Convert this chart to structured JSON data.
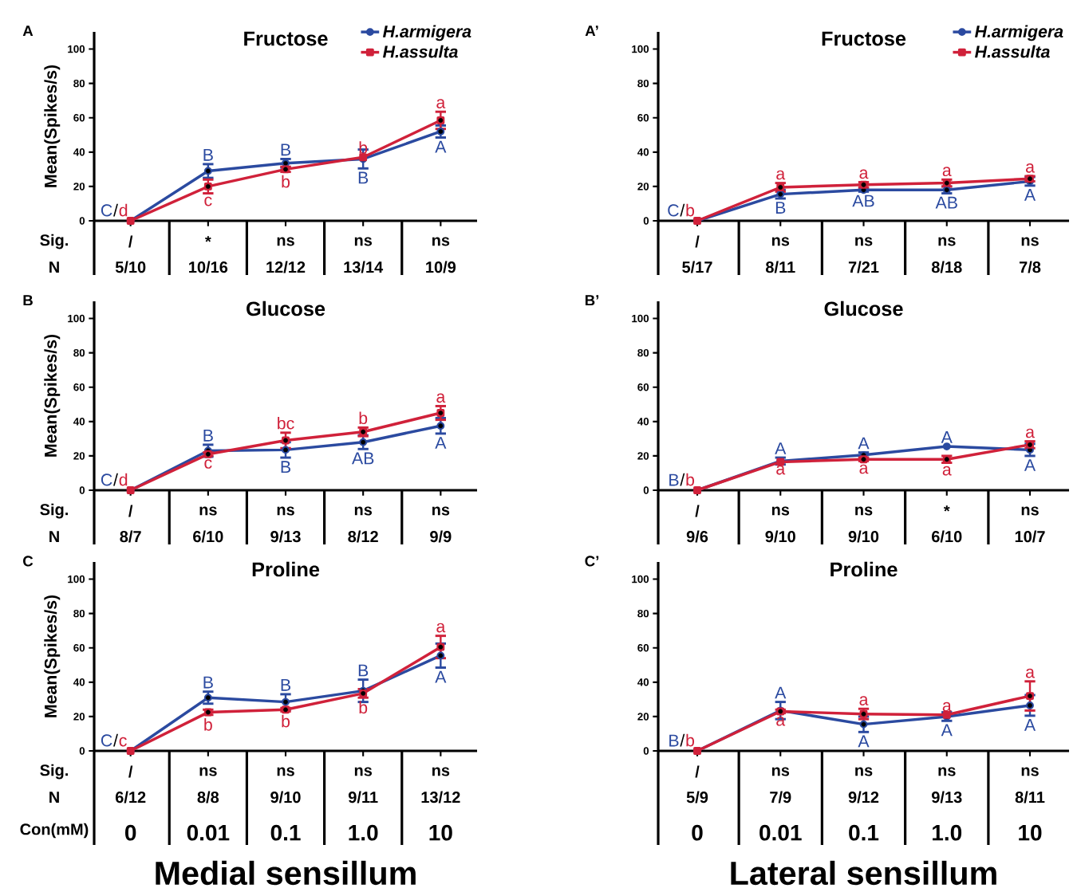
{
  "chart_data": [
    {
      "type": "line",
      "title": "Fructose",
      "ylabel": "Mean(Spikes/s)",
      "categories": [
        "0",
        "0.01",
        "0.1",
        "1.0",
        "10"
      ],
      "ylim": [
        0,
        110
      ],
      "yticks": [
        0,
        20,
        40,
        60,
        80,
        100
      ],
      "tick_labels": "y",
      "legend": "top right",
      "grid": false,
      "series": [
        {
          "name": "H.armigera",
          "color": "#2b4aa0",
          "marker": "circle",
          "values": [
            0,
            29,
            33.5,
            36,
            52
          ],
          "errors": [
            null,
            4,
            2.5,
            5.5,
            3.5
          ],
          "value_labels": [
            "C",
            "B",
            "B",
            "B",
            "A"
          ]
        },
        {
          "name": "H.assulta",
          "color": "#d0213a",
          "marker": "square",
          "values": [
            0,
            20,
            30,
            37,
            58.5
          ],
          "errors": [
            null,
            4,
            1.5,
            null,
            5
          ],
          "value_labels": [
            "d",
            "c",
            "b",
            "b",
            "a"
          ]
        }
      ],
      "annotations": [
        "A",
        "Sig.",
        "N",
        {
          "text": "/",
          "x": "0",
          "y": 0
        },
        "/",
        "*",
        "ns",
        "ns",
        "ns",
        "5/10",
        "10/16",
        "12/12",
        "13/14",
        "10/9"
      ]
    },
    {
      "type": "line",
      "title": "Fructose",
      "categories": [
        "0",
        "0.01",
        "0.1",
        "1.0",
        "10"
      ],
      "ylim": [
        0,
        110
      ],
      "yticks": [
        0,
        20,
        40,
        60,
        80,
        100
      ],
      "tick_labels": "y",
      "legend": "top right",
      "grid": false,
      "series": [
        {
          "name": "H.armigera",
          "color": "#2b4aa0",
          "marker": "circle",
          "values": [
            0,
            15.5,
            18,
            18,
            23
          ],
          "errors": [
            null,
            2.5,
            1,
            2,
            2.5
          ],
          "value_labels": [
            "C",
            "B",
            "AB",
            "AB",
            "A"
          ]
        },
        {
          "name": "H.assulta",
          "color": "#d0213a",
          "marker": "square",
          "values": [
            0,
            19.5,
            21,
            22,
            24.5
          ],
          "errors": [
            null,
            2.5,
            1.5,
            2,
            1.5
          ],
          "value_labels": [
            "b",
            "a",
            "a",
            "a",
            "a"
          ]
        }
      ],
      "annotations": [
        "A’",
        {
          "text": "/",
          "x": "0",
          "y": 0
        },
        "/",
        "ns",
        "ns",
        "ns",
        "ns",
        "5/17",
        "8/11",
        "7/21",
        "8/18",
        "7/8"
      ]
    },
    {
      "type": "line",
      "title": "Glucose",
      "ylabel": "Mean(Spikes/s)",
      "categories": [
        "0",
        "0.01",
        "0.1",
        "1.0",
        "10"
      ],
      "ylim": [
        0,
        110
      ],
      "yticks": [
        0,
        20,
        40,
        60,
        80,
        100
      ],
      "tick_labels": "y",
      "grid": false,
      "series": [
        {
          "color": "#2b4aa0",
          "marker": "circle",
          "values": [
            0,
            23,
            23.5,
            28,
            37.5
          ],
          "errors": [
            null,
            3.5,
            4.5,
            4,
            4.5
          ],
          "value_labels": [
            "C",
            "B",
            "B",
            "AB",
            "A"
          ]
        },
        {
          "color": "#d0213a",
          "marker": "square",
          "values": [
            0,
            21,
            29,
            34,
            45
          ],
          "errors": [
            null,
            1,
            4.5,
            2.5,
            4
          ],
          "value_labels": [
            "d",
            "c",
            "bc",
            "b",
            "a"
          ]
        }
      ],
      "annotations": [
        "B",
        "Sig.",
        "N",
        {
          "text": "/",
          "x": "0",
          "y": 0
        },
        "/",
        "ns",
        "ns",
        "ns",
        "ns",
        "8/7",
        "6/10",
        "9/13",
        "8/12",
        "9/9"
      ]
    },
    {
      "type": "line",
      "title": "Glucose",
      "categories": [
        "0",
        "0.01",
        "0.1",
        "1.0",
        "10"
      ],
      "ylim": [
        0,
        110
      ],
      "yticks": [
        0,
        20,
        40,
        60,
        80,
        100
      ],
      "tick_labels": "y",
      "grid": false,
      "series": [
        {
          "color": "#2b4aa0",
          "marker": "circle",
          "values": [
            0,
            17,
            20.5,
            25.5,
            23.5
          ],
          "errors": [
            null,
            2,
            1.5,
            null,
            3.5
          ],
          "value_labels": [
            "B",
            "A",
            "A",
            "A",
            "A"
          ]
        },
        {
          "color": "#d0213a",
          "marker": "square",
          "values": [
            0,
            16.5,
            18,
            18,
            26.5
          ],
          "errors": [
            null,
            null,
            1,
            2,
            2
          ],
          "value_labels": [
            "b",
            "a",
            "a",
            "a",
            "a"
          ]
        }
      ],
      "annotations": [
        "B’",
        {
          "text": "/",
          "x": "0",
          "y": 0
        },
        "/",
        "ns",
        "ns",
        "*",
        "ns",
        "9/6",
        "9/10",
        "9/10",
        "6/10",
        "10/7"
      ]
    },
    {
      "type": "line",
      "title": "Proline",
      "ylabel": "Mean(Spikes/s)",
      "xlabel": "Medial sensillum",
      "categories": [
        "0",
        "0.01",
        "0.1",
        "1.0",
        "10"
      ],
      "ylim": [
        0,
        110
      ],
      "yticks": [
        0,
        20,
        40,
        60,
        80,
        100
      ],
      "grid": false,
      "series": [
        {
          "color": "#2b4aa0",
          "marker": "circle",
          "values": [
            0,
            31,
            28.5,
            35,
            55.5
          ],
          "errors": [
            null,
            3.5,
            4.5,
            6.5,
            7
          ],
          "value_labels": [
            "C",
            "B",
            "B",
            "B",
            "A"
          ]
        },
        {
          "color": "#d0213a",
          "marker": "square",
          "values": [
            0,
            22.5,
            24,
            33.5,
            60.5
          ],
          "errors": [
            null,
            1.5,
            1,
            2.5,
            6.5
          ],
          "value_labels": [
            "c",
            "b",
            "b",
            "b",
            "a"
          ]
        }
      ],
      "annotations": [
        "C",
        "Sig.",
        "N",
        "Con(mM)",
        {
          "text": "/",
          "x": "0",
          "y": 0
        },
        "/",
        "ns",
        "ns",
        "ns",
        "ns",
        "6/12",
        "8/8",
        "9/10",
        "9/11",
        "13/12"
      ]
    },
    {
      "type": "line",
      "title": "Proline",
      "xlabel": "Lateral sensillum",
      "categories": [
        "0",
        "0.01",
        "0.1",
        "1.0",
        "10"
      ],
      "ylim": [
        0,
        110
      ],
      "yticks": [
        0,
        20,
        40,
        60,
        80,
        100
      ],
      "grid": false,
      "series": [
        {
          "color": "#2b4aa0",
          "marker": "circle",
          "values": [
            0,
            23.5,
            15.5,
            20,
            26.5
          ],
          "errors": [
            null,
            5,
            4.5,
            2.5,
            6
          ],
          "value_labels": [
            "B",
            "A",
            "A",
            "A",
            "A"
          ]
        },
        {
          "color": "#d0213a",
          "marker": "square",
          "values": [
            0,
            23,
            21.5,
            21,
            32
          ],
          "errors": [
            null,
            1,
            3,
            null,
            8.5
          ],
          "value_labels": [
            "b",
            "a",
            "a",
            "a",
            "a"
          ]
        }
      ],
      "annotations": [
        "C’",
        {
          "text": "/",
          "x": "0",
          "y": 0
        },
        "/",
        "ns",
        "ns",
        "ns",
        "ns",
        "5/9",
        "7/9",
        "9/12",
        "9/13",
        "8/11"
      ]
    }
  ]
}
